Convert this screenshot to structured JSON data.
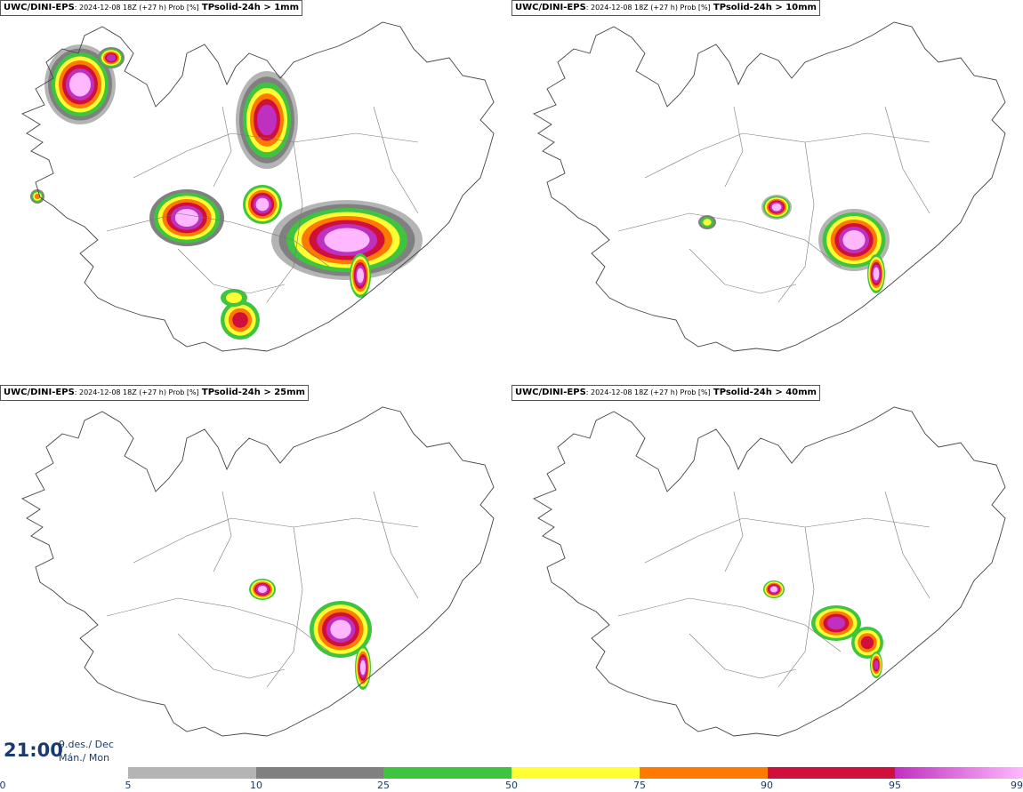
{
  "panels": [
    {
      "model": "UWC/DINI-EPS",
      "meta": ": 2024-12-08 18Z (+27 h) Prob [%]",
      "field": "TPsolid-24h > 1mm"
    },
    {
      "model": "UWC/DINI-EPS",
      "meta": ": 2024-12-08 18Z (+27 h) Prob [%]",
      "field": "TPsolid-24h > 10mm"
    },
    {
      "model": "UWC/DINI-EPS",
      "meta": ": 2024-12-08 18Z (+27 h) Prob [%]",
      "field": "TPsolid-24h > 25mm"
    },
    {
      "model": "UWC/DINI-EPS",
      "meta": ": 2024-12-08 18Z (+27 h) Prob [%]",
      "field": "TPsolid-24h > 40mm"
    }
  ],
  "valid_time": {
    "time": "21:00",
    "date_line1": "9.des./ Dec",
    "date_line2": "Mán./ Mon"
  },
  "colorbar": {
    "ticks": [
      "0",
      "5",
      "10",
      "25",
      "50",
      "75",
      "90",
      "95",
      "99"
    ],
    "bins": [
      {
        "from": "5",
        "to": "10",
        "color": "#b4b4b4"
      },
      {
        "from": "10",
        "to": "25",
        "color": "#808080"
      },
      {
        "from": "25",
        "to": "50",
        "color": "#3ec43e"
      },
      {
        "from": "50",
        "to": "75",
        "color": "#ffff33"
      },
      {
        "from": "75",
        "to": "90",
        "color": "#ff7a00"
      },
      {
        "from": "90",
        "to": "95",
        "color": "#d0103a"
      },
      {
        "from": "95",
        "to": "99",
        "color": "#c030c0",
        "gradient_to": "#ffb8ff"
      }
    ]
  },
  "colors": {
    "outline": "#444444",
    "text": "#1a3a6e"
  }
}
